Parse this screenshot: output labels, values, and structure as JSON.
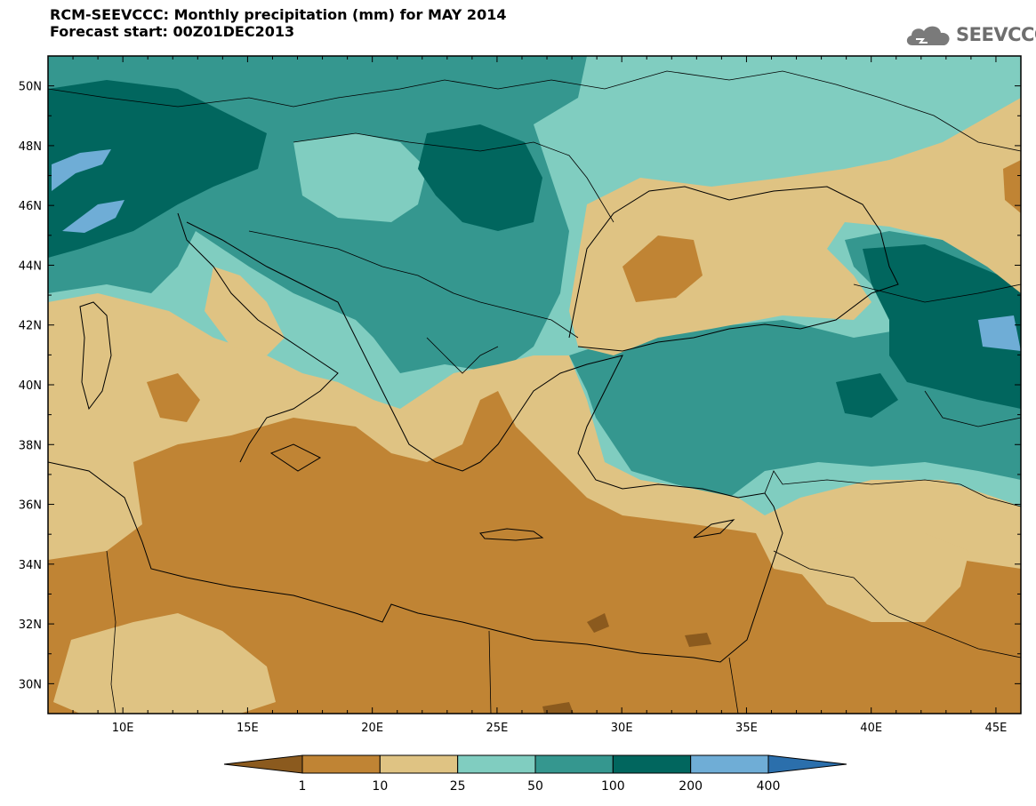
{
  "title": {
    "line1": "RCM-SEEVCCC: Monthly precipitation (mm) for MAY 2014",
    "line2": "Forecast start: 00Z01DEC2013"
  },
  "logo": {
    "text": "SEEVCCC",
    "icon": "cloud-logo-icon"
  },
  "map": {
    "lon_range": [
      7,
      46
    ],
    "lat_range": [
      29,
      51
    ],
    "lon_ticks": [
      "10E",
      "15E",
      "20E",
      "25E",
      "30E",
      "35E",
      "40E",
      "45E"
    ],
    "lat_ticks": [
      "50N",
      "48N",
      "46N",
      "44N",
      "42N",
      "40N",
      "38N",
      "36N",
      "34N",
      "32N",
      "30N"
    ]
  },
  "colorbar": {
    "colors": [
      "#8b5a1e",
      "#c08434",
      "#dfc383",
      "#80cdc0",
      "#35978f",
      "#01665e",
      "#6fadd6",
      "#2b6fac"
    ],
    "labels": [
      "1",
      "10",
      "25",
      "50",
      "100",
      "200",
      "400"
    ]
  }
}
